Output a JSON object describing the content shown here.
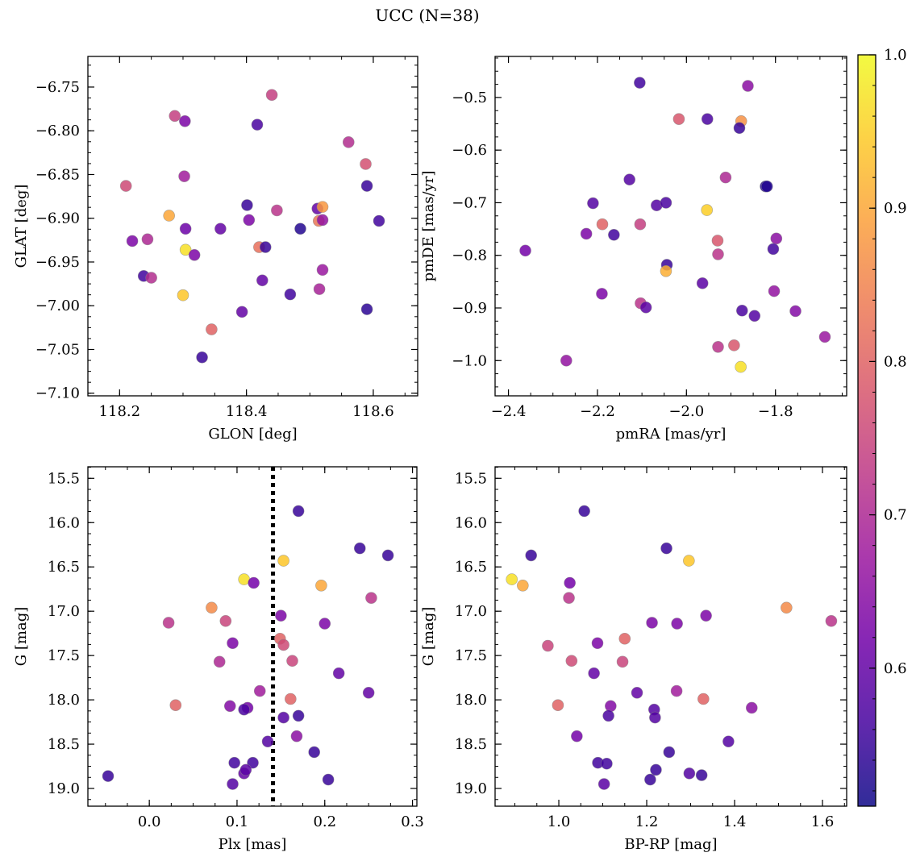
{
  "figure": {
    "title": "UCC (N=38)",
    "colorbar": {
      "range": [
        0.51,
        1.0
      ],
      "ticks": [
        0.6,
        0.7,
        0.8,
        0.9,
        1.0
      ],
      "tick_labels": [
        "0.6",
        "0.7",
        "0.8",
        "0.9",
        "1.0"
      ],
      "colormap": [
        "#0d0887",
        "#46039f",
        "#7201a8",
        "#9c179e",
        "#bd3786",
        "#d8576b",
        "#ed7953",
        "#fb9f3a",
        "#fdca26",
        "#f0f921"
      ]
    }
  },
  "chart_data": [
    {
      "id": "glon-glat",
      "type": "scatter",
      "xlabel": "GLON [deg]",
      "ylabel": "GLAT [deg]",
      "xlim": [
        118.15,
        118.67
      ],
      "ylim": [
        -7.103,
        -6.715
      ],
      "xticks": [
        118.2,
        118.4,
        118.6
      ],
      "xtick_labels": [
        "118.2",
        "118.4",
        "118.6"
      ],
      "yticks": [
        -7.1,
        -7.05,
        -7.0,
        -6.95,
        -6.9,
        -6.85,
        -6.8,
        -6.75
      ],
      "ytick_labels": [
        "−7.10",
        "−7.05",
        "−7.00",
        "−6.95",
        "−6.90",
        "−6.85",
        "−6.80",
        "−6.75"
      ],
      "x": [
        118.44,
        118.287,
        118.303,
        118.417,
        118.561,
        118.588,
        118.21,
        118.302,
        118.59,
        118.401,
        118.512,
        118.52,
        118.278,
        118.404,
        118.448,
        118.514,
        118.609,
        118.22,
        118.244,
        118.304,
        118.359,
        118.485,
        118.304,
        118.42,
        118.43,
        118.318,
        118.52,
        118.238,
        118.25,
        118.425,
        118.515,
        118.469,
        118.3,
        118.59,
        118.393,
        118.345,
        118.33,
        118.52
      ],
      "y": [
        -6.759,
        -6.783,
        -6.789,
        -6.793,
        -6.813,
        -6.838,
        -6.863,
        -6.852,
        -6.863,
        -6.885,
        -6.889,
        -6.887,
        -6.897,
        -6.902,
        -6.891,
        -6.903,
        -6.903,
        -6.926,
        -6.924,
        -6.912,
        -6.912,
        -6.912,
        -6.936,
        -6.933,
        -6.933,
        -6.942,
        -6.959,
        -6.966,
        -6.968,
        -6.971,
        -6.981,
        -6.987,
        -6.988,
        -7.004,
        -7.007,
        -7.027,
        -7.059,
        -6.902
      ],
      "c": [
        0.74,
        0.74,
        0.63,
        0.57,
        0.71,
        0.77,
        0.76,
        0.68,
        0.55,
        0.55,
        0.6,
        0.88,
        0.9,
        0.63,
        0.72,
        0.83,
        0.56,
        0.63,
        0.7,
        0.61,
        0.6,
        0.53,
        0.97,
        0.82,
        0.55,
        0.63,
        0.67,
        0.56,
        0.71,
        0.6,
        0.69,
        0.56,
        0.94,
        0.54,
        0.6,
        0.8,
        0.55,
        0.66
      ]
    },
    {
      "id": "pmra-pmde",
      "type": "scatter",
      "xlabel": "pmRA [mas/yr]",
      "ylabel": "pmDE [mas/yr]",
      "xlim": [
        -2.43,
        -1.64
      ],
      "ylim": [
        -1.067,
        -0.422
      ],
      "xticks": [
        -2.4,
        -2.2,
        -2.0,
        -1.8
      ],
      "xtick_labels": [
        "−2.4",
        "−2.2",
        "−2.0",
        "−1.8"
      ],
      "yticks": [
        -1.0,
        -0.9,
        -0.8,
        -0.7,
        -0.6,
        -0.5
      ],
      "ytick_labels": [
        "−1.0",
        "−0.9",
        "−0.8",
        "−0.7",
        "−0.6",
        "−0.5"
      ],
      "x": [
        -2.105,
        -1.862,
        -2.017,
        -1.953,
        -1.877,
        -1.881,
        -1.912,
        -2.128,
        -1.822,
        -1.819,
        -2.21,
        -2.067,
        -2.046,
        -1.954,
        -2.189,
        -2.104,
        -2.225,
        -2.163,
        -1.93,
        -1.798,
        -2.362,
        -1.929,
        -1.805,
        -2.044,
        -2.046,
        -1.964,
        -2.19,
        -1.803,
        -2.103,
        -2.091,
        -1.875,
        -1.847,
        -1.755,
        -1.929,
        -1.893,
        -1.689,
        -2.27,
        -1.878
      ],
      "y": [
        -0.472,
        -0.478,
        -0.541,
        -0.541,
        -0.545,
        -0.558,
        -0.652,
        -0.656,
        -0.669,
        -0.669,
        -0.701,
        -0.705,
        -0.7,
        -0.714,
        -0.741,
        -0.741,
        -0.759,
        -0.761,
        -0.772,
        -0.768,
        -0.791,
        -0.798,
        -0.788,
        -0.818,
        -0.83,
        -0.853,
        -0.873,
        -0.868,
        -0.891,
        -0.899,
        -0.905,
        -0.915,
        -0.906,
        -0.974,
        -0.971,
        -0.955,
        -1.0,
        -1.012
      ],
      "c": [
        0.56,
        0.65,
        0.78,
        0.57,
        0.87,
        0.55,
        0.7,
        0.58,
        0.53,
        0.53,
        0.58,
        0.58,
        0.57,
        0.95,
        0.8,
        0.74,
        0.63,
        0.56,
        0.78,
        0.65,
        0.62,
        0.72,
        0.56,
        0.55,
        0.91,
        0.59,
        0.63,
        0.66,
        0.72,
        0.59,
        0.57,
        0.58,
        0.64,
        0.72,
        0.78,
        0.67,
        0.66,
        0.97
      ]
    },
    {
      "id": "plx-g",
      "type": "scatter",
      "xlabel": "Plx [mas]",
      "ylabel": "G [mag]",
      "xlim": [
        -0.07,
        0.305
      ],
      "ylim": [
        19.2,
        15.37
      ],
      "xticks": [
        0.0,
        0.1,
        0.2,
        0.3
      ],
      "xtick_labels": [
        "0.0",
        "0.1",
        "0.2",
        "0.3"
      ],
      "yticks": [
        15.5,
        16.0,
        16.5,
        17.0,
        17.5,
        18.0,
        18.5,
        19.0
      ],
      "ytick_labels": [
        "15.5",
        "16.0",
        "16.5",
        "17.0",
        "17.5",
        "18.0",
        "18.5",
        "19.0"
      ],
      "vline": 0.141,
      "x": [
        0.17,
        0.24,
        0.272,
        0.153,
        0.108,
        0.119,
        0.196,
        0.071,
        0.253,
        0.022,
        0.15,
        0.087,
        0.2,
        0.149,
        0.095,
        0.153,
        0.08,
        0.163,
        0.216,
        0.126,
        0.25,
        0.03,
        0.161,
        0.092,
        0.112,
        0.108,
        0.17,
        0.153,
        0.188,
        0.135,
        0.168,
        0.118,
        0.108,
        0.097,
        0.204,
        -0.047,
        0.095,
        0.11
      ],
      "y": [
        15.87,
        16.29,
        16.37,
        16.43,
        16.64,
        16.68,
        16.71,
        16.96,
        16.85,
        17.13,
        17.05,
        17.11,
        17.14,
        17.31,
        17.36,
        17.38,
        17.57,
        17.56,
        17.7,
        17.9,
        17.92,
        18.06,
        17.99,
        18.07,
        18.09,
        18.11,
        18.18,
        18.2,
        18.59,
        18.47,
        18.41,
        18.71,
        18.83,
        18.71,
        18.9,
        18.86,
        18.95,
        18.79
      ],
      "c": [
        0.55,
        0.55,
        0.55,
        0.94,
        0.97,
        0.62,
        0.9,
        0.86,
        0.72,
        0.72,
        0.63,
        0.75,
        0.63,
        0.8,
        0.63,
        0.76,
        0.7,
        0.75,
        0.6,
        0.68,
        0.6,
        0.8,
        0.8,
        0.64,
        0.62,
        0.57,
        0.55,
        0.58,
        0.55,
        0.58,
        0.65,
        0.56,
        0.6,
        0.56,
        0.55,
        0.55,
        0.58,
        0.59
      ]
    },
    {
      "id": "bprp-g",
      "type": "scatter",
      "xlabel": "BP-RP [mag]",
      "ylabel": "G [mag]",
      "xlim": [
        0.855,
        1.655
      ],
      "ylim": [
        19.2,
        15.37
      ],
      "xticks": [
        1.0,
        1.2,
        1.4,
        1.6
      ],
      "xtick_labels": [
        "1.0",
        "1.2",
        "1.4",
        "1.6"
      ],
      "yticks": [
        15.5,
        16.0,
        16.5,
        17.0,
        17.5,
        18.0,
        18.5,
        19.0
      ],
      "ytick_labels": [
        "15.5",
        "16.0",
        "16.5",
        "17.0",
        "17.5",
        "18.0",
        "18.5",
        "19.0"
      ],
      "x": [
        1.058,
        1.245,
        0.937,
        1.296,
        0.893,
        1.025,
        0.918,
        1.518,
        1.023,
        1.62,
        1.335,
        1.212,
        1.269,
        1.15,
        0.975,
        1.088,
        1.029,
        1.145,
        1.08,
        1.268,
        1.178,
        0.998,
        1.329,
        1.118,
        1.217,
        1.219,
        1.113,
        1.439,
        1.251,
        1.386,
        1.041,
        1.089,
        1.221,
        1.109,
        1.208,
        1.297,
        1.325,
        1.103
      ],
      "y": [
        15.87,
        16.29,
        16.37,
        16.43,
        16.64,
        16.68,
        16.71,
        16.96,
        16.85,
        17.11,
        17.05,
        17.13,
        17.14,
        17.31,
        17.39,
        17.36,
        17.56,
        17.57,
        17.7,
        17.9,
        17.92,
        18.06,
        17.99,
        18.07,
        18.11,
        18.2,
        18.18,
        18.09,
        18.59,
        18.47,
        18.41,
        18.71,
        18.79,
        18.72,
        18.9,
        18.83,
        18.85,
        18.95
      ],
      "c": [
        0.55,
        0.55,
        0.55,
        0.94,
        0.97,
        0.62,
        0.9,
        0.86,
        0.72,
        0.72,
        0.63,
        0.63,
        0.63,
        0.8,
        0.75,
        0.63,
        0.76,
        0.75,
        0.6,
        0.68,
        0.6,
        0.8,
        0.8,
        0.64,
        0.58,
        0.58,
        0.57,
        0.65,
        0.55,
        0.58,
        0.62,
        0.56,
        0.55,
        0.56,
        0.55,
        0.58,
        0.55,
        0.59
      ]
    }
  ]
}
